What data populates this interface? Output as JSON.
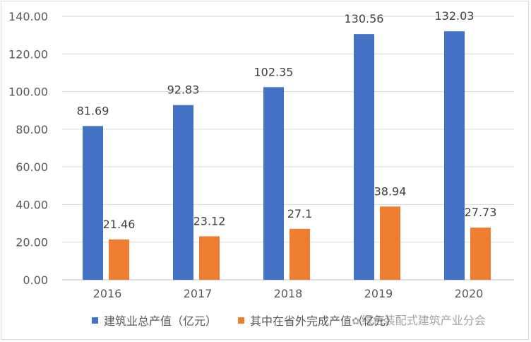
{
  "chart_data": {
    "type": "bar",
    "categories": [
      "2016",
      "2017",
      "2018",
      "2019",
      "2020"
    ],
    "series": [
      {
        "name": "建筑业总产值（亿元）",
        "values": [
          81.69,
          92.83,
          102.35,
          130.56,
          132.03
        ],
        "labels": [
          "81.69",
          "92.83",
          "102.35",
          "130.56",
          "132.03"
        ],
        "color": "#4472C4"
      },
      {
        "name": "其中在省外完成产值（亿元）",
        "values": [
          21.46,
          23.12,
          27.1,
          38.94,
          27.73
        ],
        "labels": [
          "21.46",
          "23.12",
          "27.1",
          "38.94",
          "27.73"
        ],
        "color": "#ED7D31"
      }
    ],
    "y_ticks": [
      "0.00",
      "20.00",
      "40.00",
      "60.00",
      "80.00",
      "100.00",
      "120.00",
      "140.00"
    ],
    "ylim": [
      0,
      140
    ],
    "grid": true,
    "legend": "bottom"
  },
  "legend": {
    "items": [
      {
        "label": "建筑业总产值（亿元）",
        "color": "#4472C4"
      },
      {
        "label": "其中在省外完成产值（亿元）",
        "color": "#ED7D31"
      }
    ]
  },
  "watermark": {
    "text": "绿色装配式建筑产业分会",
    "icon": "wechat-icon"
  }
}
